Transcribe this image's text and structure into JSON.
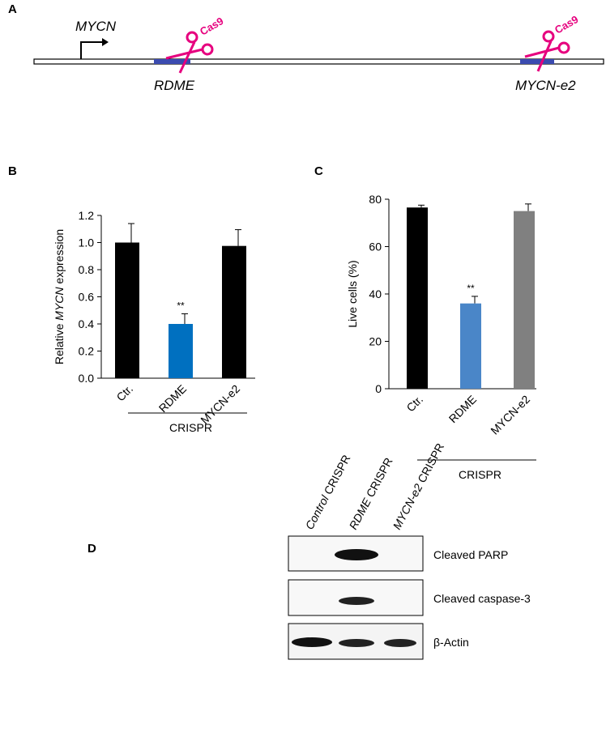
{
  "panel_a": {
    "label": "A",
    "gene": "MYCN",
    "enzyme": "Cas9",
    "sites": [
      "RDME",
      "MYCN-e2"
    ]
  },
  "chart_data": [
    {
      "type": "bar",
      "label": "B",
      "y_label": [
        "Relative ",
        "MYCN",
        " expression"
      ],
      "categories": [
        "Ctr.",
        "RDME",
        "MYCN-e2"
      ],
      "values": [
        1.0,
        0.4,
        0.975
      ],
      "errors": [
        0.14,
        0.075,
        0.12
      ],
      "colors": [
        "#000000",
        "#0070c0",
        "#000000"
      ],
      "significance": [
        null,
        "**",
        null
      ],
      "group_label": "CRISPR",
      "ylim": [
        0,
        1.2
      ],
      "yticks": [
        {
          "value": 0,
          "label": "0.0"
        },
        {
          "value": 0.2,
          "label": "0.2"
        },
        {
          "value": 0.4,
          "label": "0.4"
        },
        {
          "value": 0.6,
          "label": "0.6"
        },
        {
          "value": 0.8,
          "label": "0.8"
        },
        {
          "value": 1.0,
          "label": "1.0"
        },
        {
          "value": 1.2,
          "label": "1.2"
        }
      ]
    },
    {
      "type": "bar",
      "label": "C",
      "y_label": [
        "Live cells (%)"
      ],
      "categories": [
        "Ctr.",
        "RDME",
        "MYCN-e2"
      ],
      "values": [
        76.5,
        36,
        75
      ],
      "errors": [
        1,
        3,
        3
      ],
      "colors": [
        "#000000",
        "#4a86c8",
        "#808080"
      ],
      "significance": [
        null,
        "**",
        null
      ],
      "group_label": "CRISPR",
      "ylim": [
        0,
        80
      ],
      "yticks": [
        0,
        20,
        40,
        60,
        80
      ]
    }
  ],
  "panel_d": {
    "label": "D",
    "lanes": [
      [
        "Control",
        " CRISPR"
      ],
      [
        "RDME",
        " CRISPR"
      ],
      [
        "MYCN-e2",
        " CRISPR"
      ]
    ],
    "blots": [
      "Cleaved PARP",
      "Cleaved caspase-3",
      "β-Actin"
    ]
  }
}
